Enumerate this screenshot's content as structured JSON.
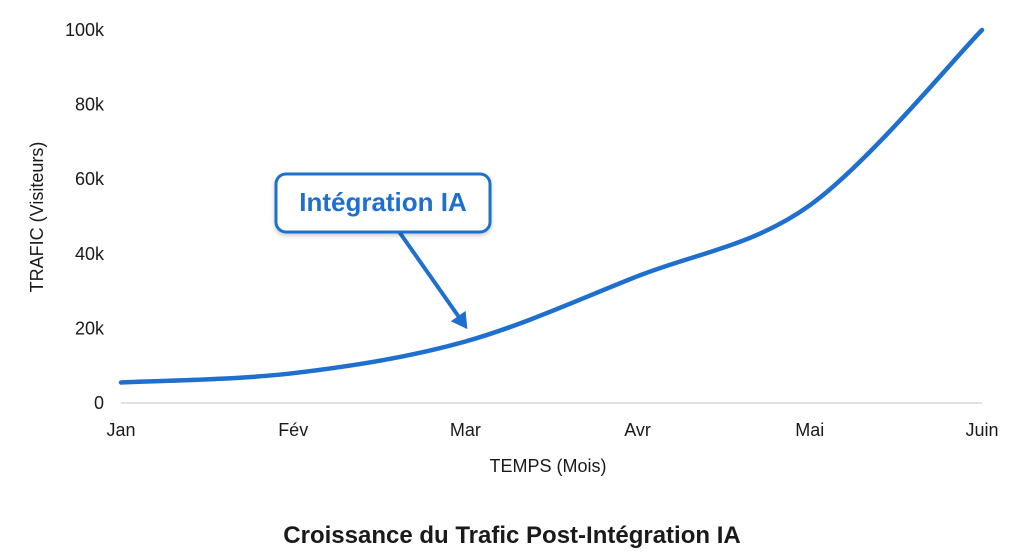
{
  "chart_data": {
    "type": "line",
    "title": "Croissance du Trafic Post-Intégration IA",
    "xlabel": "TEMPS (Mois)",
    "ylabel": "TRAFIC (Visiteurs)",
    "categories": [
      "Jan",
      "Fév",
      "Mar",
      "Avr",
      "Mai",
      "Juin"
    ],
    "y_ticks": [
      0,
      20000,
      40000,
      60000,
      80000,
      100000
    ],
    "y_tick_labels": [
      "0",
      "20k",
      "40k",
      "60k",
      "80k",
      "100k"
    ],
    "ylim": [
      0,
      100000
    ],
    "grid": false,
    "series": [
      {
        "values": [
          5500,
          8000,
          16500,
          34000,
          53000,
          100000
        ]
      }
    ],
    "annotations": [
      {
        "text": "Intégration IA",
        "points_to_x": 2.0,
        "points_to_y": 19000
      }
    ],
    "colors": {
      "line": "#1f6fce",
      "axis": "#d9d9d9",
      "annotation": "#1f6fce"
    }
  }
}
